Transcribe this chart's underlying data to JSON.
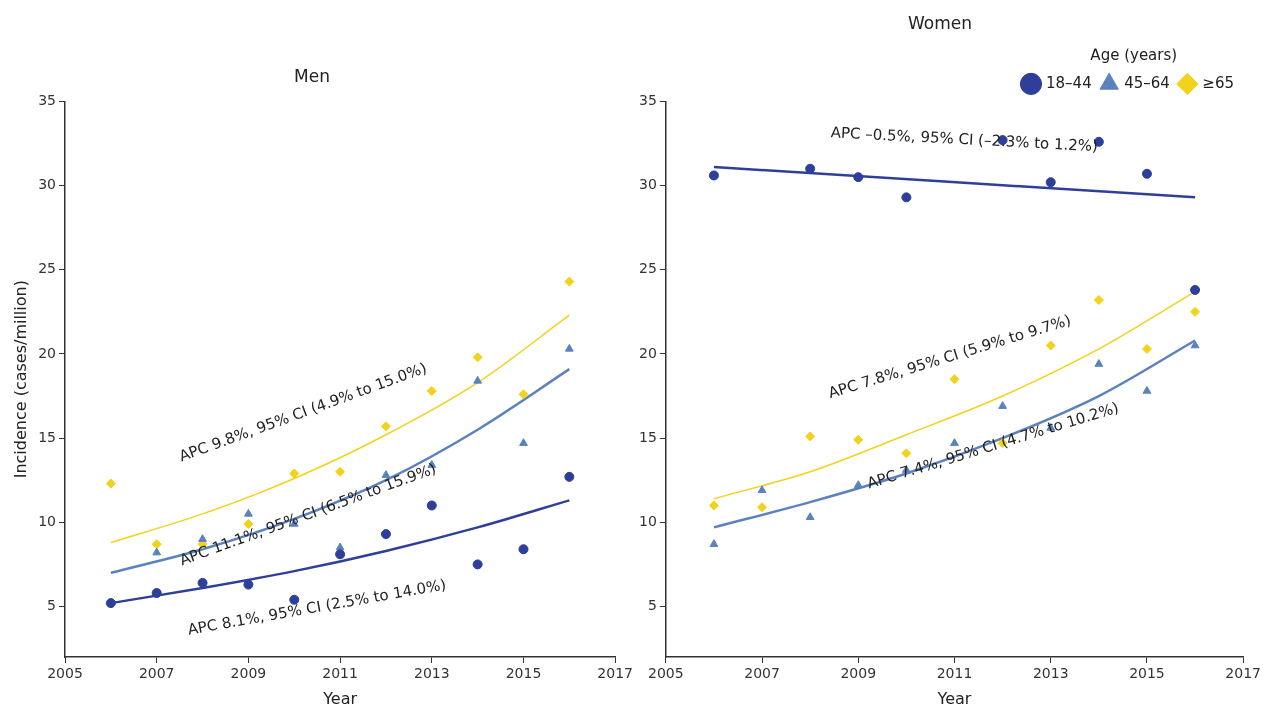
{
  "chart_data": [
    {
      "type": "scatter",
      "title": "Men",
      "xlabel": "Year",
      "ylabel": "Incidence (cases/million)",
      "x": [
        2006,
        2007,
        2008,
        2009,
        2010,
        2011,
        2012,
        2013,
        2014,
        2015,
        2016
      ],
      "xlim": [
        2005,
        2017
      ],
      "xticks": [
        2005,
        2007,
        2009,
        2011,
        2013,
        2015,
        2017
      ],
      "ylim": [
        2,
        35
      ],
      "yticks": [
        5,
        10,
        15,
        20,
        25,
        30,
        35
      ],
      "grid": false,
      "legend": false,
      "series": [
        {
          "type": "scatter",
          "color": "#2e3f9a",
          "marker": "circle",
          "values": [
            5.2,
            5.8,
            6.4,
            6.3,
            5.4,
            8.1,
            9.3,
            11.0,
            7.5,
            8.4,
            12.7
          ]
        },
        {
          "type": "scatter",
          "color": "#5b82bd",
          "marker": "triangle",
          "values": [
            null,
            8.2,
            9.0,
            10.5,
            9.9,
            8.5,
            12.8,
            13.4,
            18.4,
            14.7,
            20.3
          ]
        },
        {
          "type": "scatter",
          "color": "#f2d21b",
          "marker": "diamond",
          "values": [
            12.3,
            8.7,
            8.7,
            9.9,
            12.9,
            13.0,
            15.7,
            17.8,
            19.8,
            17.6,
            24.3
          ]
        },
        {
          "type": "line",
          "color": "#2e3f9a",
          "marker": "none",
          "x": [
            2006,
            2008,
            2010,
            2012,
            2014,
            2016
          ],
          "values": [
            5.2,
            6.1,
            7.1,
            8.3,
            9.7,
            11.3
          ]
        },
        {
          "type": "line",
          "color": "#5b82bd",
          "marker": "none",
          "x": [
            2006,
            2008,
            2010,
            2012,
            2014,
            2016
          ],
          "values": [
            7.0,
            8.4,
            10.2,
            12.5,
            15.5,
            19.1
          ]
        },
        {
          "type": "line",
          "color": "#f2d21b",
          "marker": "none",
          "x": [
            2006,
            2008,
            2010,
            2012,
            2014,
            2016
          ],
          "values": [
            8.8,
            10.5,
            12.6,
            15.2,
            18.3,
            22.3
          ]
        }
      ],
      "annotations": [
        "APC 9.8%, 95% CI (4.9% to 15.0%)",
        "APC 11.1%, 95% CI (6.5% to 15.9%)",
        "APC 8.1%, 95% CI (2.5% to 14.0%)"
      ]
    },
    {
      "type": "scatter",
      "title": "Women",
      "xlabel": "Year",
      "legend_title": "Age (years)",
      "x": [
        2006,
        2007,
        2008,
        2009,
        2010,
        2011,
        2012,
        2013,
        2014,
        2015,
        2016
      ],
      "xlim": [
        2005,
        2017
      ],
      "xticks": [
        2005,
        2007,
        2009,
        2011,
        2013,
        2015,
        2017
      ],
      "ylim": [
        2,
        35
      ],
      "yticks": [
        5,
        10,
        15,
        20,
        25,
        30,
        35
      ],
      "grid": false,
      "legend": "top right",
      "series": [
        {
          "type": "scatter",
          "name": "18–44",
          "color": "#2e3f9a",
          "marker": "circle",
          "values": [
            30.6,
            null,
            31.0,
            30.5,
            29.3,
            null,
            32.7,
            30.2,
            32.6,
            30.7,
            23.8
          ]
        },
        {
          "type": "scatter",
          "name": "45–64",
          "color": "#5b82bd",
          "marker": "triangle",
          "values": [
            8.7,
            11.9,
            10.3,
            12.2,
            13.1,
            14.7,
            16.9,
            15.6,
            19.4,
            17.8,
            20.5
          ]
        },
        {
          "type": "scatter",
          "name": "≥65",
          "color": "#f2d21b",
          "marker": "diamond",
          "values": [
            11.0,
            10.9,
            15.1,
            14.9,
            14.1,
            18.5,
            14.7,
            20.5,
            23.2,
            20.3,
            22.5
          ]
        },
        {
          "type": "line",
          "color": "#2e3f9a",
          "marker": "none",
          "x": [
            2006,
            2016
          ],
          "values": [
            31.1,
            29.3
          ]
        },
        {
          "type": "line",
          "color": "#5b82bd",
          "marker": "none",
          "x": [
            2006,
            2008,
            2010,
            2012,
            2014,
            2016
          ],
          "values": [
            9.7,
            11.2,
            12.9,
            15.0,
            17.5,
            20.8
          ]
        },
        {
          "type": "line",
          "color": "#f2d21b",
          "marker": "none",
          "x": [
            2006,
            2008,
            2010,
            2012,
            2014,
            2016
          ],
          "values": [
            11.4,
            13.0,
            15.2,
            17.5,
            20.3,
            23.7
          ]
        }
      ],
      "annotations": [
        "APC –0.5%, 95% CI (–2.3% to 1.2%)",
        "APC 7.8%, 95% CI (5.9% to 9.7%)",
        "APC 7.4%, 95% CI (4.7% to 10.2%)"
      ]
    }
  ]
}
